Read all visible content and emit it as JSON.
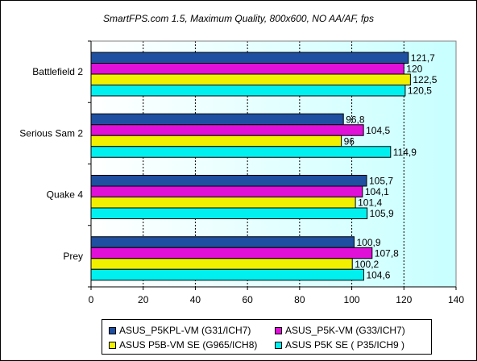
{
  "chart_data": {
    "type": "bar",
    "orientation": "horizontal",
    "title": "SmartFPS.com 1.5, Maximum Quality, 800x600, NO AA/AF, fps",
    "categories": [
      "Battlefield 2",
      "Serious Sam 2",
      "Quake 4",
      "Prey"
    ],
    "series": [
      {
        "name": "ASUS_P5KPL-VM (G31/ICH7)",
        "color": "#1f4fa0",
        "values": [
          121.7,
          96.8,
          105.7,
          100.9
        ],
        "labels": [
          "121,7",
          "96,8",
          "105,7",
          "100,9"
        ]
      },
      {
        "name": "ASUS_P5K-VM (G33/ICH7)",
        "color": "#e010d8",
        "values": [
          120,
          104.5,
          104.1,
          107.8
        ],
        "labels": [
          "120",
          "104,5",
          "104,1",
          "107,8"
        ]
      },
      {
        "name": "ASUS P5B-VM SE (G965/ICH8)",
        "color": "#f0f000",
        "values": [
          122.5,
          96,
          101.4,
          100.2
        ],
        "labels": [
          "122,5",
          "96",
          "101,4",
          "100,2"
        ]
      },
      {
        "name": "ASUS P5K SE ( P35/ICH9 )",
        "color": "#00f0f0",
        "values": [
          120.5,
          114.9,
          105.9,
          104.6
        ],
        "labels": [
          "120,5",
          "114,9",
          "105,9",
          "104,6"
        ]
      }
    ],
    "xlim": [
      0,
      140
    ],
    "xticks": [
      0,
      20,
      40,
      60,
      80,
      100,
      120,
      140
    ],
    "grid": true,
    "legend_position": "bottom"
  }
}
